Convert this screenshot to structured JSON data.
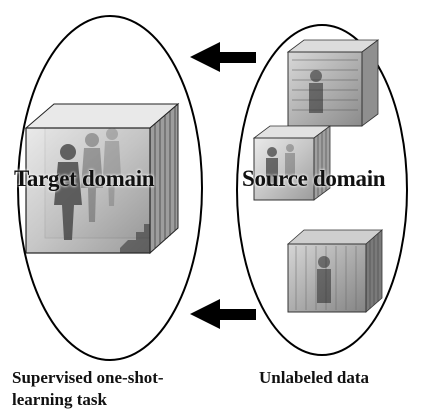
{
  "diagram": {
    "target_domain_label": "Target domain",
    "source_domain_label": "Source domain",
    "left_caption_line1": "Supervised one-shot-",
    "left_caption_line2": "learning task",
    "right_caption": "Unlabeled data",
    "colors": {
      "outline": "#000000",
      "arrow": "#000000",
      "volume_edge": "#333333",
      "volume_fill": "#cfcfcf",
      "text": "#111111"
    },
    "icons": [
      "arrow-left-icon",
      "video-volume-icon"
    ]
  }
}
